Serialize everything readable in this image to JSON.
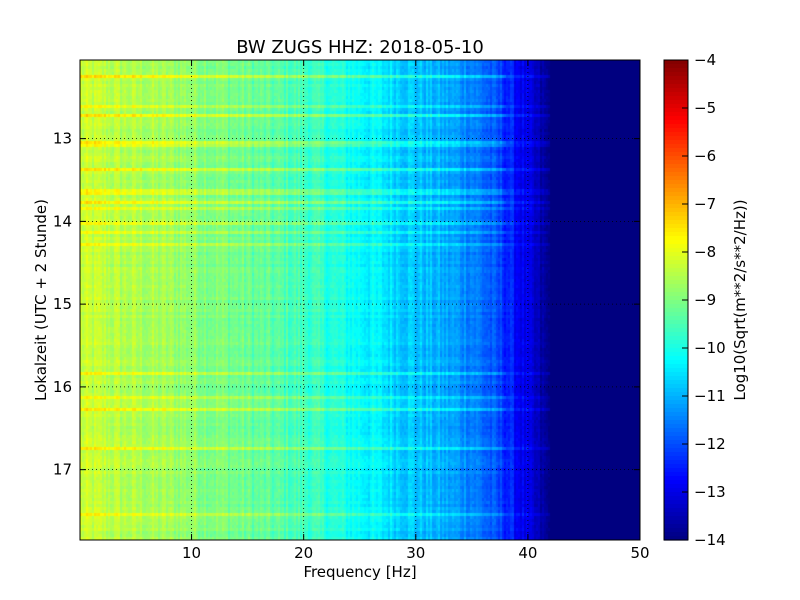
{
  "chart_data": {
    "type": "heatmap",
    "title": "BW ZUGS HHZ: 2018-05-10",
    "xlabel": "Frequency [Hz]",
    "ylabel": "Lokalzeit (UTC + 2 Stunde)",
    "xlim": [
      0.05,
      50
    ],
    "ylim": [
      17.85,
      12.05
    ],
    "x_ticks": [
      10,
      20,
      30,
      40,
      50
    ],
    "y_ticks": [
      13,
      14,
      15,
      16,
      17
    ],
    "grid": true,
    "colormap": "jet",
    "colorbar": {
      "label": "Log10(Sqrt(m**2/s**2/Hz))",
      "range": [
        -14,
        -4
      ],
      "ticks": [
        -4,
        -5,
        -6,
        -7,
        -8,
        -9,
        -10,
        -11,
        -12,
        -13,
        -14
      ]
    },
    "value_profile_by_frequency": [
      {
        "frequency": 0,
        "value": -8.3
      },
      {
        "frequency": 10,
        "value": -8.8
      },
      {
        "frequency": 20,
        "value": -9.6
      },
      {
        "frequency": 25,
        "value": -10.2
      },
      {
        "frequency": 30,
        "value": -10.8
      },
      {
        "frequency": 35,
        "value": -11.4
      },
      {
        "frequency": 38,
        "value": -12.3
      },
      {
        "frequency": 40,
        "value": -13.1
      },
      {
        "frequency": 42,
        "value": -14
      },
      {
        "frequency": 50,
        "value": -14
      }
    ]
  }
}
